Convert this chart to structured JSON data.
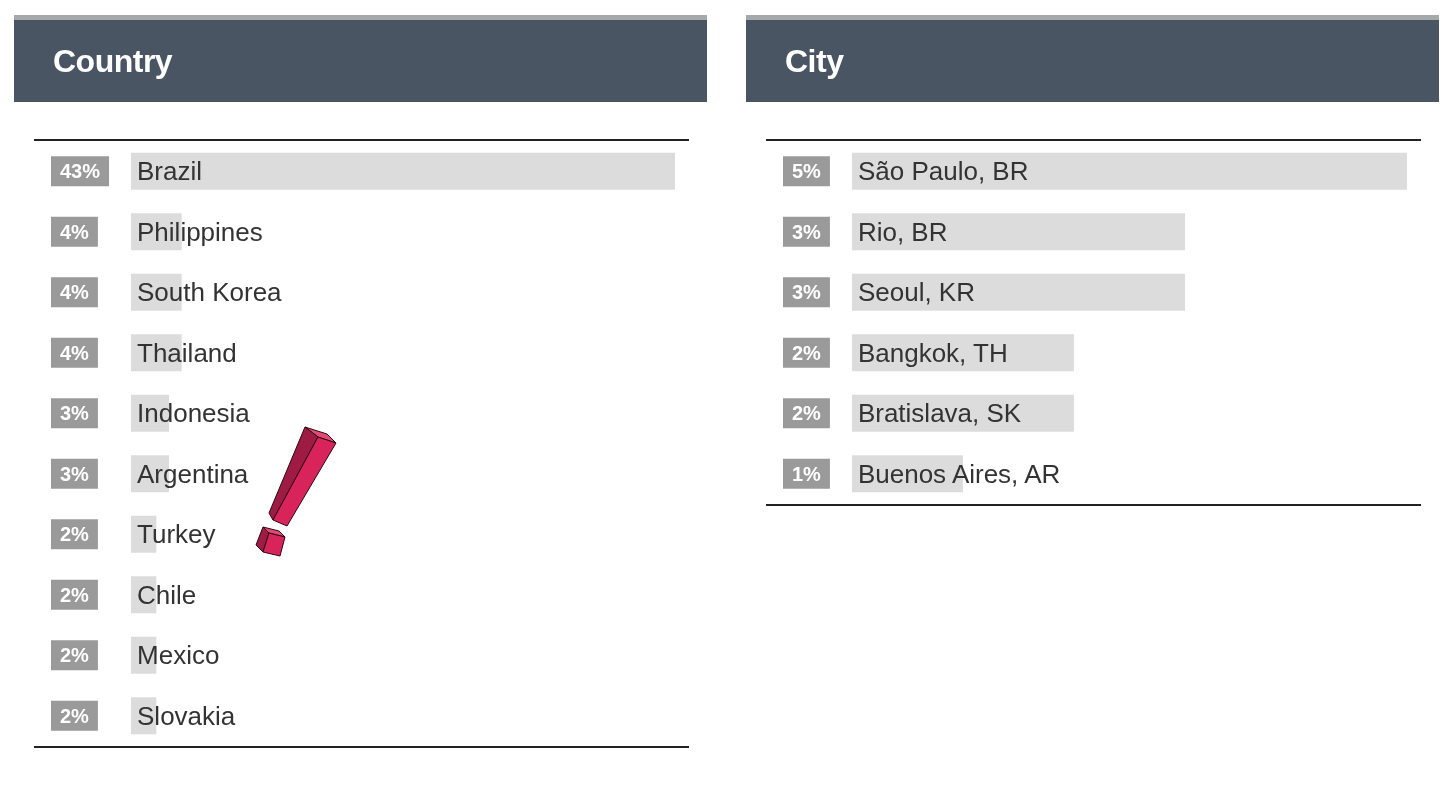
{
  "chart_data": [
    {
      "type": "bar",
      "title": "Country",
      "orientation": "horizontal",
      "categories": [
        "Brazil",
        "Philippines",
        "South Korea",
        "Thailand",
        "Indonesia",
        "Argentina",
        "Turkey",
        "Chile",
        "Mexico",
        "Slovakia"
      ],
      "values": [
        43,
        4,
        4,
        4,
        3,
        3,
        2,
        2,
        2,
        2
      ],
      "value_labels": [
        "43%",
        "4%",
        "4%",
        "4%",
        "3%",
        "3%",
        "2%",
        "2%",
        "2%",
        "2%"
      ],
      "color": "#dcdcdc",
      "tick_labels": "y"
    },
    {
      "type": "bar",
      "title": "City",
      "orientation": "horizontal",
      "categories": [
        "São Paulo, BR",
        "Rio, BR",
        "Seoul, KR",
        "Bangkok, TH",
        "Bratislava, SK",
        "Buenos Aires, AR"
      ],
      "values": [
        5,
        3,
        3,
        2,
        2,
        1
      ],
      "value_labels": [
        "5%",
        "3%",
        "3%",
        "2%",
        "2%",
        "1%"
      ],
      "color": "#dcdcdc",
      "tick_labels": "y"
    }
  ]
}
